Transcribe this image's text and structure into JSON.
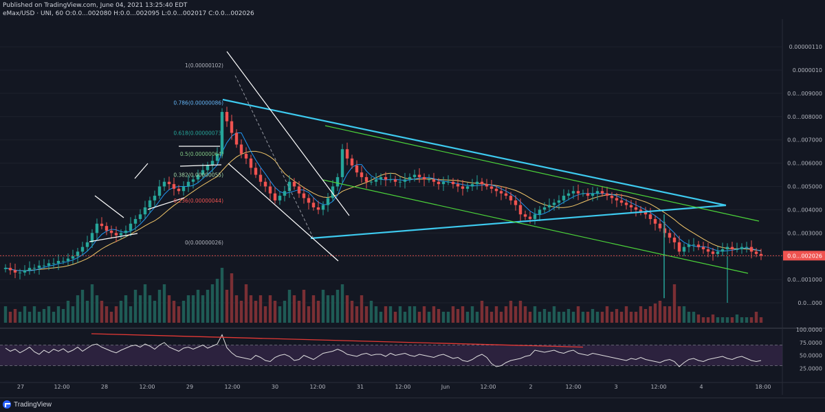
{
  "header": {
    "published": "Published on TradingView.com, June 04, 2021 13:25:40 EDT",
    "symbol_line": "eMax/USD · UNI, 60  O:0.0...002080  H:0.0...002095  L:0.0...002017  C:0.0...002026"
  },
  "footer": {
    "brand": "TradingView"
  },
  "colors": {
    "background": "#131722",
    "up": "#26a69a",
    "down": "#ef5350",
    "trend_cyan": "#3ecbf0",
    "channel_green": "#4cd53a",
    "rsi_line": "#e0e0e0",
    "rsi_band": "#3d2a52",
    "divergence": "#e53935"
  },
  "chart_data": [
    {
      "type": "candlestick",
      "symbol": "eMax/USD",
      "exchange": "UNI",
      "interval": "60",
      "ohlc_last": {
        "open": "0.0...002080",
        "high": "0.0...002095",
        "low": "0.0...002017",
        "close": "0.0...002026"
      },
      "price_axis_labels": [
        "0.00000110",
        "0.0000010",
        "0.0...009000",
        "0.0...008000",
        "0.0...007000",
        "0.0...006000",
        "0.0...005000",
        "0.0...004000",
        "0.0...003000",
        "0.0...002000",
        "0.0...001000",
        "0.0...000"
      ],
      "price_axis_values": [
        110,
        100,
        90,
        80,
        70,
        60,
        50,
        40,
        30,
        20,
        10,
        0
      ],
      "current_price_label": "0.0...002026",
      "current_price": 20.26,
      "time_axis_labels": [
        "27",
        "12:00",
        "28",
        "12:00",
        "29",
        "12:00",
        "30",
        "12:00",
        "31",
        "12:00",
        "Jun",
        "12:00",
        "2",
        "12:00",
        "3",
        "12:00",
        "4",
        "18:00"
      ],
      "fibonacci": [
        {
          "level": "1",
          "label": "1(0.00000102)"
        },
        {
          "level": "0.786",
          "label": "0.786(0.00000086)"
        },
        {
          "level": "0.618",
          "label": "0.618(0.00000073)"
        },
        {
          "level": "0.5",
          "label": "0.5(0.00000064)"
        },
        {
          "level": "0.382",
          "label": "0.382(0.00000055)"
        },
        {
          "level": "0.236",
          "label": "0.236(0.00000044)"
        },
        {
          "level": "0",
          "label": "0(0.00000026)"
        }
      ],
      "close_series": [
        15,
        14,
        13,
        13,
        14,
        15,
        15,
        16,
        16,
        17,
        17,
        18,
        18,
        19,
        20,
        22,
        24,
        26,
        30,
        34,
        33,
        31,
        30,
        29,
        30,
        31,
        34,
        36,
        38,
        41,
        44,
        46,
        50,
        52,
        51,
        49,
        48,
        50,
        52,
        53,
        55,
        57,
        59,
        61,
        64,
        82,
        78,
        73,
        68,
        64,
        62,
        58,
        55,
        52,
        50,
        47,
        44,
        46,
        48,
        52,
        50,
        47,
        45,
        43,
        41,
        40,
        42,
        45,
        50,
        54,
        66,
        62,
        59,
        56,
        54,
        52,
        52,
        53,
        54,
        53,
        53,
        52,
        52,
        53,
        54,
        55,
        54,
        53,
        53,
        52,
        51,
        52,
        52,
        51,
        50,
        49,
        50,
        51,
        52,
        51,
        50,
        49,
        48,
        47,
        46,
        44,
        42,
        38,
        37,
        36,
        38,
        40,
        41,
        42,
        43,
        44,
        46,
        47,
        48,
        47,
        47,
        46,
        47,
        48,
        47,
        46,
        45,
        44,
        43,
        42,
        41,
        40,
        39,
        38,
        36,
        34,
        32,
        30,
        28,
        26,
        22,
        24,
        25,
        25,
        24,
        23,
        22,
        21,
        22,
        23,
        24,
        23,
        23,
        24,
        24,
        22,
        21,
        20.26
      ],
      "volume_relative": [
        0.3,
        0.2,
        0.25,
        0.2,
        0.3,
        0.2,
        0.3,
        0.2,
        0.25,
        0.3,
        0.2,
        0.3,
        0.25,
        0.4,
        0.3,
        0.5,
        0.6,
        0.4,
        0.7,
        0.5,
        0.4,
        0.3,
        0.2,
        0.3,
        0.4,
        0.5,
        0.3,
        0.6,
        0.5,
        0.7,
        0.5,
        0.4,
        0.6,
        0.7,
        0.5,
        0.4,
        0.3,
        0.4,
        0.5,
        0.5,
        0.6,
        0.5,
        0.6,
        0.7,
        0.8,
        1.0,
        0.6,
        0.9,
        0.5,
        0.4,
        0.7,
        0.5,
        0.4,
        0.5,
        0.3,
        0.5,
        0.4,
        0.3,
        0.4,
        0.6,
        0.5,
        0.4,
        0.6,
        0.3,
        0.5,
        0.4,
        0.6,
        0.5,
        0.5,
        0.6,
        0.7,
        0.5,
        0.4,
        0.3,
        0.5,
        0.3,
        0.4,
        0.3,
        0.2,
        0.3,
        0.3,
        0.2,
        0.3,
        0.2,
        0.3,
        0.3,
        0.2,
        0.3,
        0.2,
        0.3,
        0.25,
        0.2,
        0.2,
        0.3,
        0.25,
        0.3,
        0.2,
        0.3,
        0.2,
        0.4,
        0.3,
        0.2,
        0.3,
        0.2,
        0.3,
        0.4,
        0.3,
        0.4,
        0.3,
        0.2,
        0.3,
        0.2,
        0.25,
        0.2,
        0.3,
        0.2,
        0.2,
        0.25,
        0.2,
        0.3,
        0.2,
        0.2,
        0.25,
        0.2,
        0.2,
        0.3,
        0.2,
        0.25,
        0.2,
        0.3,
        0.2,
        0.2,
        0.3,
        0.25,
        0.3,
        0.35,
        0.4,
        0.3,
        0.3,
        0.7,
        0.3,
        0.3,
        0.2,
        0.2,
        0.15,
        0.1,
        0.1,
        0.15,
        0.1,
        0.1,
        0.1,
        0.1,
        0.15,
        0.1,
        0.1,
        0.1,
        0.2,
        0.1
      ]
    },
    {
      "type": "line",
      "name": "RSI",
      "yaxis_labels": [
        "100.0000",
        "75.0000",
        "50.0000",
        "25.0000"
      ],
      "yaxis_values": [
        100,
        75,
        50,
        25
      ],
      "bands": [
        30,
        70
      ],
      "values": [
        64,
        58,
        62,
        55,
        60,
        66,
        57,
        52,
        60,
        55,
        62,
        58,
        63,
        56,
        60,
        66,
        58,
        64,
        70,
        72,
        66,
        62,
        58,
        55,
        60,
        64,
        68,
        70,
        66,
        72,
        68,
        62,
        70,
        75,
        66,
        62,
        58,
        64,
        66,
        62,
        66,
        70,
        64,
        68,
        72,
        90,
        65,
        55,
        48,
        46,
        44,
        42,
        50,
        46,
        40,
        38,
        46,
        50,
        52,
        48,
        40,
        42,
        50,
        46,
        42,
        48,
        54,
        56,
        58,
        62,
        58,
        52,
        50,
        48,
        52,
        54,
        50,
        52,
        52,
        48,
        54,
        50,
        52,
        54,
        50,
        48,
        52,
        50,
        48,
        46,
        50,
        52,
        48,
        44,
        46,
        40,
        38,
        42,
        48,
        52,
        46,
        34,
        28,
        30,
        36,
        40,
        42,
        44,
        48,
        50,
        60,
        58,
        56,
        58,
        60,
        56,
        54,
        58,
        60,
        54,
        52,
        50,
        54,
        52,
        50,
        48,
        46,
        44,
        42,
        40,
        44,
        42,
        46,
        42,
        40,
        38,
        36,
        40,
        42,
        38,
        28,
        36,
        42,
        44,
        40,
        38,
        42,
        44,
        46,
        48,
        44,
        42,
        46,
        48,
        44,
        40,
        38,
        40
      ]
    }
  ]
}
